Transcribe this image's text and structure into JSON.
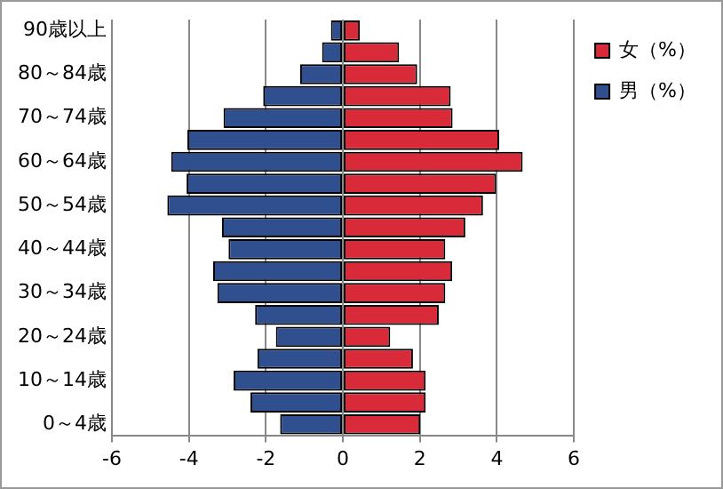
{
  "chart_data": {
    "type": "bar",
    "orientation": "horizontal",
    "stacked": true,
    "categories": [
      "90歳以上",
      null,
      "80～84歳",
      null,
      "70～74歳",
      null,
      "60～64歳",
      null,
      "50～54歳",
      null,
      "40～44歳",
      null,
      "30～34歳",
      null,
      "20～24歳",
      null,
      "10～14歳",
      null,
      "0～4歳"
    ],
    "series": [
      {
        "name": "女（%）",
        "color": "#d92a3a",
        "values": [
          0.44,
          1.46,
          1.93,
          2.8,
          2.85,
          4.06,
          4.67,
          3.98,
          3.64,
          3.18,
          2.66,
          2.84,
          2.66,
          2.49,
          1.23,
          1.82,
          2.15,
          2.15,
          2.01
        ]
      },
      {
        "name": "男（%）",
        "color": "#2f4f8f",
        "values": [
          -0.31,
          -0.54,
          -1.11,
          -2.07,
          -3.1,
          -4.04,
          -4.46,
          -4.06,
          -4.56,
          -3.14,
          -2.97,
          -3.37,
          -3.26,
          -2.28,
          -1.74,
          -2.22,
          -2.84,
          -2.4,
          -1.63
        ]
      }
    ],
    "xlim": [
      -6,
      6
    ],
    "xticks": [
      -6,
      -4,
      -2,
      0,
      2,
      4,
      6
    ],
    "grid": "x",
    "legend": "right"
  }
}
